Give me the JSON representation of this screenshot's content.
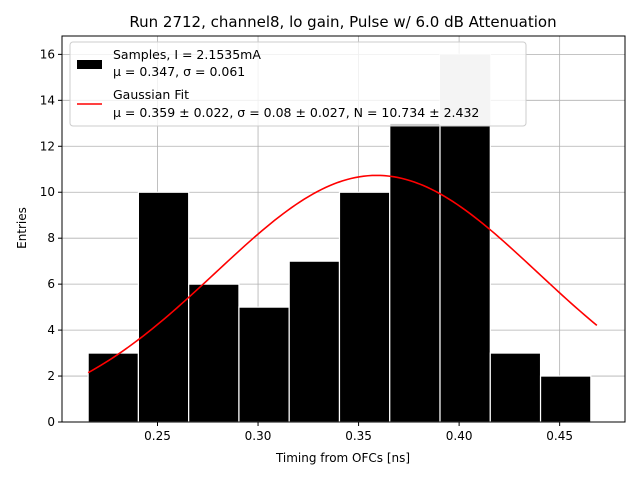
{
  "chart_data": {
    "type": "bar",
    "title": "Run 2712, channel8, lo gain, Pulse w/ 6.0 dB Attenuation",
    "xlabel": "Timing from OFCs [ns]",
    "ylabel": "Entries",
    "xlim": [
      0.2025,
      0.4825
    ],
    "ylim": [
      0,
      16.8
    ],
    "xticks": [
      0.25,
      0.3,
      0.35,
      0.4,
      0.45
    ],
    "xtick_labels": [
      "0.25",
      "0.30",
      "0.35",
      "0.40",
      "0.45"
    ],
    "yticks": [
      0,
      2,
      4,
      6,
      8,
      10,
      12,
      14,
      16
    ],
    "ytick_labels": [
      "0",
      "2",
      "4",
      "6",
      "8",
      "10",
      "12",
      "14",
      "16"
    ],
    "grid": true,
    "legend_position": "top-left",
    "bins": [
      {
        "x0": 0.2155,
        "x1": 0.2405,
        "value": 3
      },
      {
        "x0": 0.2405,
        "x1": 0.2655,
        "value": 10
      },
      {
        "x0": 0.2655,
        "x1": 0.2905,
        "value": 6
      },
      {
        "x0": 0.2905,
        "x1": 0.3155,
        "value": 5
      },
      {
        "x0": 0.3155,
        "x1": 0.3405,
        "value": 7
      },
      {
        "x0": 0.3405,
        "x1": 0.3655,
        "value": 10
      },
      {
        "x0": 0.3655,
        "x1": 0.3905,
        "value": 13
      },
      {
        "x0": 0.3905,
        "x1": 0.4155,
        "value": 16
      },
      {
        "x0": 0.4155,
        "x1": 0.4405,
        "value": 3
      },
      {
        "x0": 0.4405,
        "x1": 0.4655,
        "value": 2
      }
    ],
    "gaussian": {
      "mu": 0.359,
      "sigma": 0.08,
      "N": 10.734,
      "x_start": 0.2155,
      "x_end": 0.4685
    },
    "colors": {
      "bars": "#000000",
      "bar_edge": "#ffffff",
      "fit_line": "#ff0000",
      "grid": "#b0b0b0",
      "legend_overlay": "#c8c8c8"
    },
    "legend": {
      "samples_line1": "Samples, I = 2.1535mA",
      "samples_line2": "μ = 0.347, σ = 0.061",
      "fit_line1": "Gaussian Fit",
      "fit_line2": "μ = 0.359 ± 0.022, σ = 0.08 ± 0.027, N = 10.734 ± 2.432"
    }
  }
}
